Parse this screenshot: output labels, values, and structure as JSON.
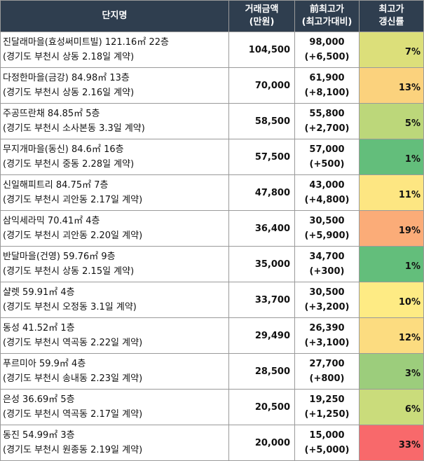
{
  "header": {
    "name": "단지명",
    "price_line1": "거래금액",
    "price_line2": "(만원)",
    "prev_line1": "前최고가",
    "prev_line2": "(최고가대비)",
    "rate_line1": "최고가",
    "rate_line2": "갱신률"
  },
  "rows": [
    {
      "name": "진달래마을(효성써미트빌) 121.16㎡ 22층",
      "location": "(경기도 부천시 상동 2.18일 계약)",
      "price": "104,500",
      "prev_high": "98,000",
      "diff": "(+6,500)",
      "rate": "7%",
      "rate_color": "#dcdf7a"
    },
    {
      "name": "다정한마을(금강) 84.98㎡ 13층",
      "location": "(경기도 부천시 상동 2.16일 계약)",
      "price": "70,000",
      "prev_high": "61,900",
      "diff": "(+8,100)",
      "rate": "13%",
      "rate_color": "#fbd27d"
    },
    {
      "name": "주공뜨란채 84.85㎡ 5층",
      "location": "(경기도 부천시 소사본동 3.3일 계약)",
      "price": "58,500",
      "prev_high": "55,800",
      "diff": "(+2,700)",
      "rate": "5%",
      "rate_color": "#bcd77a"
    },
    {
      "name": "무지개마을(동신) 84.6㎡ 16층",
      "location": "(경기도 부천시 중동 2.28일 계약)",
      "price": "57,500",
      "prev_high": "57,000",
      "diff": "(+500)",
      "rate": "1%",
      "rate_color": "#63be7b"
    },
    {
      "name": "신일해피트리 84.75㎡ 7층",
      "location": "(경기도 부천시 괴안동 2.17일 계약)",
      "price": "47,800",
      "prev_high": "43,000",
      "diff": "(+4,800)",
      "rate": "11%",
      "rate_color": "#fde682"
    },
    {
      "name": "삼익세라믹 70.41㎡ 4층",
      "location": "(경기도 부천시 괴안동 2.20일 계약)",
      "price": "36,400",
      "prev_high": "30,500",
      "diff": "(+5,900)",
      "rate": "19%",
      "rate_color": "#fbac78"
    },
    {
      "name": "반달마을(건영) 59.76㎡ 9층",
      "location": "(경기도 부천시 상동 2.15일 계약)",
      "price": "35,000",
      "prev_high": "34,700",
      "diff": "(+300)",
      "rate": "1%",
      "rate_color": "#63be7b"
    },
    {
      "name": "샬렛 59.91㎡ 4층",
      "location": "(경기도 부천시 오정동 3.1일 계약)",
      "price": "33,700",
      "prev_high": "30,500",
      "diff": "(+3,200)",
      "rate": "10%",
      "rate_color": "#feeb84"
    },
    {
      "name": "동성 41.52㎡ 1층",
      "location": "(경기도 부천시 역곡동 2.22일 계약)",
      "price": "29,490",
      "prev_high": "26,390",
      "diff": "(+3,100)",
      "rate": "12%",
      "rate_color": "#fcdc80"
    },
    {
      "name": "푸르미아 59.9㎡ 4층",
      "location": "(경기도 부천시 송내동 2.23일 계약)",
      "price": "28,500",
      "prev_high": "27,700",
      "diff": "(+800)",
      "rate": "3%",
      "rate_color": "#9ccd7c"
    },
    {
      "name": "은성 36.69㎡ 5층",
      "location": "(경기도 부천시 역곡동 2.17일 계약)",
      "price": "20,500",
      "prev_high": "19,250",
      "diff": "(+1,250)",
      "rate": "6%",
      "rate_color": "#cadc7b"
    },
    {
      "name": "동진 54.99㎡ 3층",
      "location": "(경기도 부천시 원종동 2.19일 계약)",
      "price": "20,000",
      "prev_high": "15,000",
      "diff": "(+5,000)",
      "rate": "33%",
      "rate_color": "#f8696b"
    }
  ]
}
